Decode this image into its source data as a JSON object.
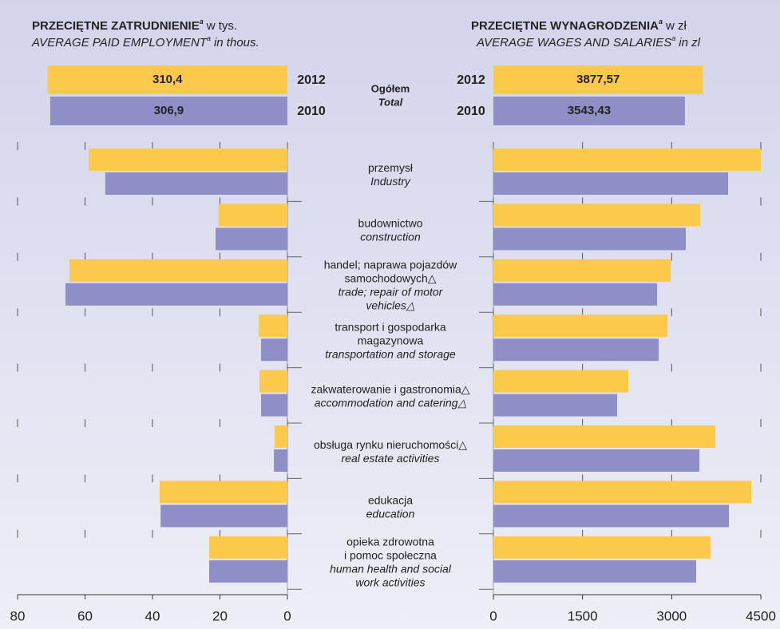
{
  "total_label": {
    "pl": "Ogółem",
    "en": "Total"
  },
  "row_labels": [
    {
      "pl": [
        "przemysł"
      ],
      "en": [
        "Industry"
      ]
    },
    {
      "pl": [
        "budownictwo"
      ],
      "en": [
        "construction"
      ]
    },
    {
      "pl": [
        "handel; naprawa pojazdów",
        "samochodowych△"
      ],
      "en": [
        "trade; repair of motor",
        "vehicles△"
      ]
    },
    {
      "pl": [
        "transport i gospodarka",
        "magazynowa"
      ],
      "en": [
        "transportation and storage"
      ]
    },
    {
      "pl": [
        "zakwaterowanie i gastronomia△"
      ],
      "en": [
        "accommodation and catering△"
      ]
    },
    {
      "pl": [
        "obsługa rynku nieruchomości△"
      ],
      "en": [
        "real estate activities"
      ]
    },
    {
      "pl": [
        "edukacja"
      ],
      "en": [
        "education"
      ]
    },
    {
      "pl": [
        "opieka zdrowotna",
        "i pomoc społeczna"
      ],
      "en": [
        "human health and social",
        "work activities"
      ]
    }
  ],
  "chart_data": [
    {
      "type": "bar",
      "title": "PRZECIĘTNE ZATRUDNIENIE",
      "title_note": "a",
      "title_unit": "w tys.",
      "subtitle": "AVERAGE PAID EMPLOYMENT",
      "subtitle_note": "a",
      "subtitle_unit": "in thous.",
      "xlim": [
        80,
        0
      ],
      "xticks": [
        80,
        60,
        40,
        20,
        0
      ],
      "series": [
        {
          "name": "2012",
          "color": "#fdc94a",
          "total": 310.4,
          "total_label": "310,4",
          "values": [
            58.9,
            20.4,
            64.6,
            8.5,
            8.3,
            3.8,
            37.9,
            23.2
          ]
        },
        {
          "name": "2010",
          "color": "#8f8fc8",
          "total": 306.9,
          "total_label": "306,9",
          "values": [
            54.0,
            21.3,
            65.8,
            7.8,
            7.8,
            4.0,
            37.6,
            23.2
          ]
        }
      ]
    },
    {
      "type": "bar",
      "title": "PRZECIĘTNE WYNAGRODZENIA",
      "title_note": "a",
      "title_unit": "w zł",
      "subtitle": "AVERAGE WAGES AND SALARIES",
      "subtitle_note": "a",
      "subtitle_unit": "in zl",
      "xlim": [
        0,
        4500
      ],
      "xticks": [
        0,
        1500,
        3000,
        4500
      ],
      "series": [
        {
          "name": "2012",
          "color": "#fdc94a",
          "total": 3877.57,
          "total_label": "3877,57",
          "values": [
            4500,
            3479,
            2982,
            2928,
            2270,
            3734,
            4339,
            3654
          ]
        },
        {
          "name": "2010",
          "color": "#8f8fc8",
          "total": 3543.43,
          "total_label": "3543,43",
          "values": [
            3949,
            3237,
            2754,
            2781,
            2082,
            3466,
            3963,
            3412
          ]
        }
      ]
    }
  ]
}
